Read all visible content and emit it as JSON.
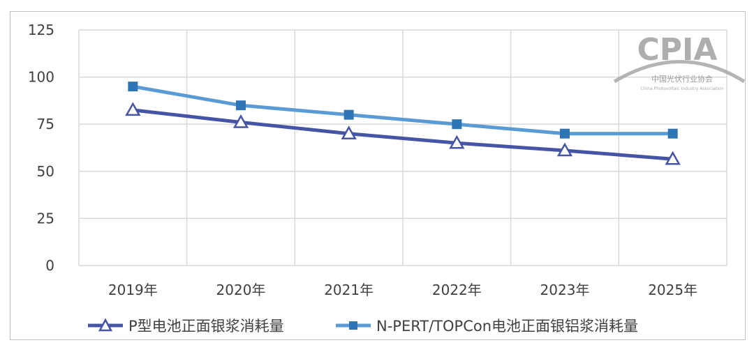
{
  "chart_data": {
    "type": "line",
    "categories": [
      "2019年",
      "2020年",
      "2021年",
      "2022年",
      "2023年",
      "2025年"
    ],
    "series": [
      {
        "name": "P型电池正面银浆消耗量",
        "values": [
          82.5,
          76,
          70,
          65,
          61,
          56.5
        ],
        "color": "#4654a6",
        "marker": "triangle-open"
      },
      {
        "name": "N-PERT/TOPCon电池正面银铝浆消耗量",
        "values": [
          95,
          85,
          80,
          75,
          70,
          70
        ],
        "color": "#5b9bd5",
        "marker": "square"
      }
    ],
    "ylim": [
      0,
      125
    ],
    "yticks": [
      0,
      25,
      50,
      75,
      100,
      125
    ],
    "grid": true,
    "legend_position": "bottom"
  },
  "watermark": {
    "logo_text": "CPIA",
    "org_name_cn": "中国光伏行业协会",
    "org_name_en": "China Photovoltaic Industry Association",
    "color": "#9a9a9a"
  }
}
